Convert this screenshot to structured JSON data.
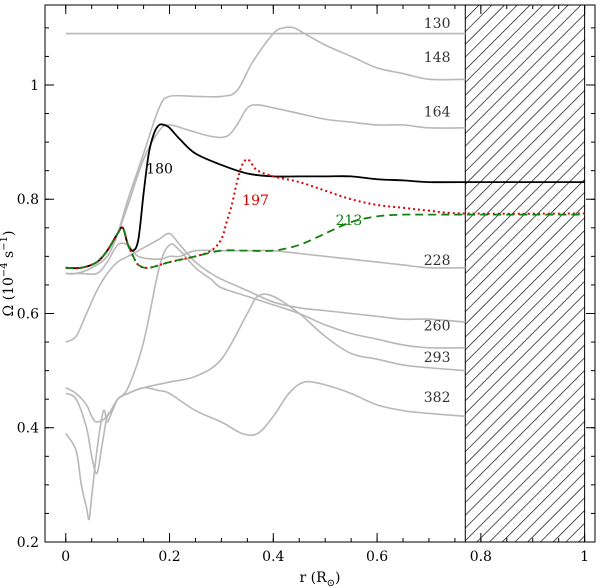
{
  "chart_data": {
    "type": "line",
    "title": "",
    "xlabel": "r (R",
    "xlabel_sub": "⊙",
    "xlabel_close": ")",
    "ylabel": "Ω  (10",
    "ylabel_exp": "−4",
    "ylabel_unit": " s",
    "ylabel_exp2": "−1",
    "ylabel_close": ")",
    "xlim": [
      -0.04,
      1.02
    ],
    "ylim": [
      0.2,
      1.14
    ],
    "xticks": [
      0,
      0.2,
      0.4,
      0.6,
      0.8,
      1
    ],
    "xtick_labels": [
      "0",
      "0.2",
      "0.4",
      "0.6",
      "0.8",
      "1"
    ],
    "yticks": [
      0.2,
      0.4,
      0.6,
      0.8,
      1.0
    ],
    "ytick_labels": [
      "0.2",
      "0.4",
      "0.6",
      "0.8",
      "1"
    ],
    "hatched_region": [
      0.77,
      1.0
    ],
    "colors": {
      "gray": "#b8b8b8",
      "black": "#000000",
      "red": "#dd0000",
      "green": "#108010"
    },
    "series": [
      {
        "name": "130",
        "label": "130",
        "color": "gray",
        "style": "solid",
        "x": [
          0,
          0.77
        ],
        "y": [
          1.09,
          1.09
        ],
        "label_at": [
          0.69,
          1.1
        ]
      },
      {
        "name": "148",
        "label": "148",
        "color": "gray",
        "style": "solid",
        "x": [
          0,
          0.02,
          0.05,
          0.08,
          0.1,
          0.12,
          0.15,
          0.18,
          0.2,
          0.25,
          0.3,
          0.33,
          0.36,
          0.4,
          0.42,
          0.44,
          0.46,
          0.5,
          0.55,
          0.6,
          0.65,
          0.7,
          0.77
        ],
        "y": [
          0.67,
          0.67,
          0.68,
          0.7,
          0.74,
          0.8,
          0.88,
          0.96,
          0.98,
          0.98,
          0.98,
          0.99,
          1.04,
          1.09,
          1.1,
          1.1,
          1.09,
          1.07,
          1.05,
          1.03,
          1.02,
          1.01,
          1.01
        ],
        "label_at": [
          0.69,
          1.04
        ]
      },
      {
        "name": "164",
        "label": "164",
        "color": "gray",
        "style": "solid",
        "x": [
          0,
          0.02,
          0.05,
          0.08,
          0.1,
          0.12,
          0.15,
          0.18,
          0.2,
          0.24,
          0.28,
          0.31,
          0.33,
          0.35,
          0.37,
          0.4,
          0.45,
          0.5,
          0.55,
          0.6,
          0.65,
          0.7,
          0.77
        ],
        "y": [
          0.67,
          0.67,
          0.68,
          0.7,
          0.74,
          0.79,
          0.87,
          0.92,
          0.93,
          0.92,
          0.91,
          0.91,
          0.93,
          0.96,
          0.965,
          0.96,
          0.95,
          0.94,
          0.935,
          0.93,
          0.93,
          0.925,
          0.925
        ],
        "label_at": [
          0.69,
          0.945
        ]
      },
      {
        "name": "180",
        "label": "180",
        "color": "black",
        "style": "solid",
        "x": [
          0,
          0.03,
          0.06,
          0.08,
          0.1,
          0.11,
          0.12,
          0.13,
          0.14,
          0.15,
          0.16,
          0.17,
          0.18,
          0.19,
          0.2,
          0.22,
          0.25,
          0.3,
          0.35,
          0.4,
          0.45,
          0.5,
          0.55,
          0.6,
          0.65,
          0.7,
          0.77,
          1.0
        ],
        "y": [
          0.68,
          0.68,
          0.69,
          0.71,
          0.74,
          0.75,
          0.72,
          0.71,
          0.73,
          0.81,
          0.88,
          0.915,
          0.93,
          0.93,
          0.925,
          0.905,
          0.88,
          0.86,
          0.845,
          0.84,
          0.84,
          0.84,
          0.84,
          0.835,
          0.833,
          0.83,
          0.83,
          0.83
        ],
        "label_at": [
          0.155,
          0.845
        ]
      },
      {
        "name": "197",
        "label": "197",
        "color": "red",
        "style": "dotted",
        "x": [
          0,
          0.03,
          0.06,
          0.08,
          0.1,
          0.11,
          0.12,
          0.13,
          0.14,
          0.16,
          0.2,
          0.25,
          0.28,
          0.3,
          0.31,
          0.32,
          0.33,
          0.34,
          0.35,
          0.36,
          0.37,
          0.4,
          0.45,
          0.5,
          0.55,
          0.6,
          0.65,
          0.7,
          0.77,
          1.0
        ],
        "y": [
          0.68,
          0.68,
          0.69,
          0.71,
          0.74,
          0.75,
          0.72,
          0.7,
          0.685,
          0.68,
          0.69,
          0.7,
          0.71,
          0.73,
          0.76,
          0.79,
          0.83,
          0.86,
          0.87,
          0.86,
          0.85,
          0.84,
          0.83,
          0.815,
          0.8,
          0.79,
          0.785,
          0.78,
          0.775,
          0.775
        ],
        "label_at": [
          0.34,
          0.79
        ]
      },
      {
        "name": "213",
        "label": "213",
        "color": "green",
        "style": "dashed",
        "x": [
          0,
          0.03,
          0.06,
          0.08,
          0.1,
          0.11,
          0.12,
          0.13,
          0.14,
          0.16,
          0.2,
          0.25,
          0.3,
          0.35,
          0.4,
          0.45,
          0.5,
          0.55,
          0.6,
          0.65,
          0.7,
          0.77,
          1.0
        ],
        "y": [
          0.68,
          0.68,
          0.69,
          0.71,
          0.74,
          0.75,
          0.72,
          0.7,
          0.685,
          0.68,
          0.69,
          0.7,
          0.71,
          0.71,
          0.71,
          0.72,
          0.74,
          0.76,
          0.77,
          0.773,
          0.773,
          0.773,
          0.773
        ],
        "label_at": [
          0.52,
          0.755
        ]
      },
      {
        "name": "228",
        "label": "228",
        "color": "gray",
        "style": "solid",
        "x": [
          0,
          0.03,
          0.06,
          0.08,
          0.1,
          0.12,
          0.14,
          0.18,
          0.2,
          0.22,
          0.25,
          0.3,
          0.35,
          0.4,
          0.45,
          0.5,
          0.55,
          0.6,
          0.65,
          0.7,
          0.77
        ],
        "y": [
          0.67,
          0.67,
          0.67,
          0.69,
          0.72,
          0.72,
          0.7,
          0.695,
          0.7,
          0.7,
          0.71,
          0.71,
          0.71,
          0.71,
          0.705,
          0.7,
          0.695,
          0.69,
          0.685,
          0.68,
          0.68
        ],
        "label_at": [
          0.69,
          0.685
        ]
      },
      {
        "name": "260",
        "label": "260",
        "color": "gray",
        "style": "solid",
        "x": [
          0,
          0.02,
          0.04,
          0.06,
          0.08,
          0.1,
          0.12,
          0.14,
          0.16,
          0.18,
          0.2,
          0.22,
          0.25,
          0.28,
          0.3,
          0.35,
          0.4,
          0.45,
          0.5,
          0.55,
          0.6,
          0.65,
          0.7,
          0.77
        ],
        "y": [
          0.55,
          0.56,
          0.6,
          0.64,
          0.67,
          0.69,
          0.7,
          0.71,
          0.72,
          0.73,
          0.74,
          0.72,
          0.69,
          0.67,
          0.66,
          0.64,
          0.62,
          0.61,
          0.605,
          0.6,
          0.595,
          0.59,
          0.59,
          0.585
        ],
        "label_at": [
          0.69,
          0.57
        ]
      },
      {
        "name": "293",
        "label": "293",
        "color": "gray",
        "style": "solid",
        "x": [
          0,
          0.02,
          0.04,
          0.05,
          0.06,
          0.07,
          0.08,
          0.09,
          0.1,
          0.12,
          0.15,
          0.18,
          0.2,
          0.22,
          0.25,
          0.28,
          0.3,
          0.35,
          0.4,
          0.45,
          0.5,
          0.55,
          0.6,
          0.65,
          0.7,
          0.77
        ],
        "y": [
          0.46,
          0.45,
          0.4,
          0.35,
          0.32,
          0.37,
          0.42,
          0.43,
          0.45,
          0.47,
          0.55,
          0.68,
          0.72,
          0.71,
          0.68,
          0.66,
          0.645,
          0.63,
          0.615,
          0.6,
          0.58,
          0.565,
          0.555,
          0.545,
          0.54,
          0.54
        ],
        "label_at": [
          0.69,
          0.515
        ]
      },
      {
        "name": "382a",
        "label": "",
        "color": "gray",
        "style": "solid",
        "x": [
          0,
          0.02,
          0.03,
          0.04,
          0.045,
          0.05,
          0.06,
          0.07,
          0.075,
          0.08,
          0.09,
          0.1,
          0.12,
          0.15,
          0.2,
          0.25,
          0.3,
          0.35,
          0.37,
          0.4,
          0.45,
          0.5,
          0.55,
          0.6,
          0.65,
          0.7,
          0.77
        ],
        "y": [
          0.39,
          0.36,
          0.3,
          0.26,
          0.24,
          0.28,
          0.36,
          0.42,
          0.43,
          0.41,
          0.43,
          0.45,
          0.46,
          0.47,
          0.48,
          0.49,
          0.52,
          0.6,
          0.63,
          0.63,
          0.6,
          0.56,
          0.53,
          0.52,
          0.51,
          0.505,
          0.5
        ],
        "label_at": null
      },
      {
        "name": "382",
        "label": "382",
        "color": "gray",
        "style": "solid",
        "x": [
          0,
          0.02,
          0.04,
          0.05,
          0.06,
          0.08,
          0.1,
          0.12,
          0.15,
          0.18,
          0.2,
          0.25,
          0.3,
          0.34,
          0.37,
          0.4,
          0.43,
          0.46,
          0.5,
          0.55,
          0.6,
          0.65,
          0.7,
          0.77
        ],
        "y": [
          0.47,
          0.46,
          0.44,
          0.42,
          0.41,
          0.42,
          0.45,
          0.46,
          0.47,
          0.465,
          0.46,
          0.43,
          0.41,
          0.39,
          0.39,
          0.42,
          0.46,
          0.48,
          0.475,
          0.46,
          0.44,
          0.43,
          0.425,
          0.42
        ],
        "label_at": [
          0.69,
          0.445
        ]
      }
    ]
  }
}
